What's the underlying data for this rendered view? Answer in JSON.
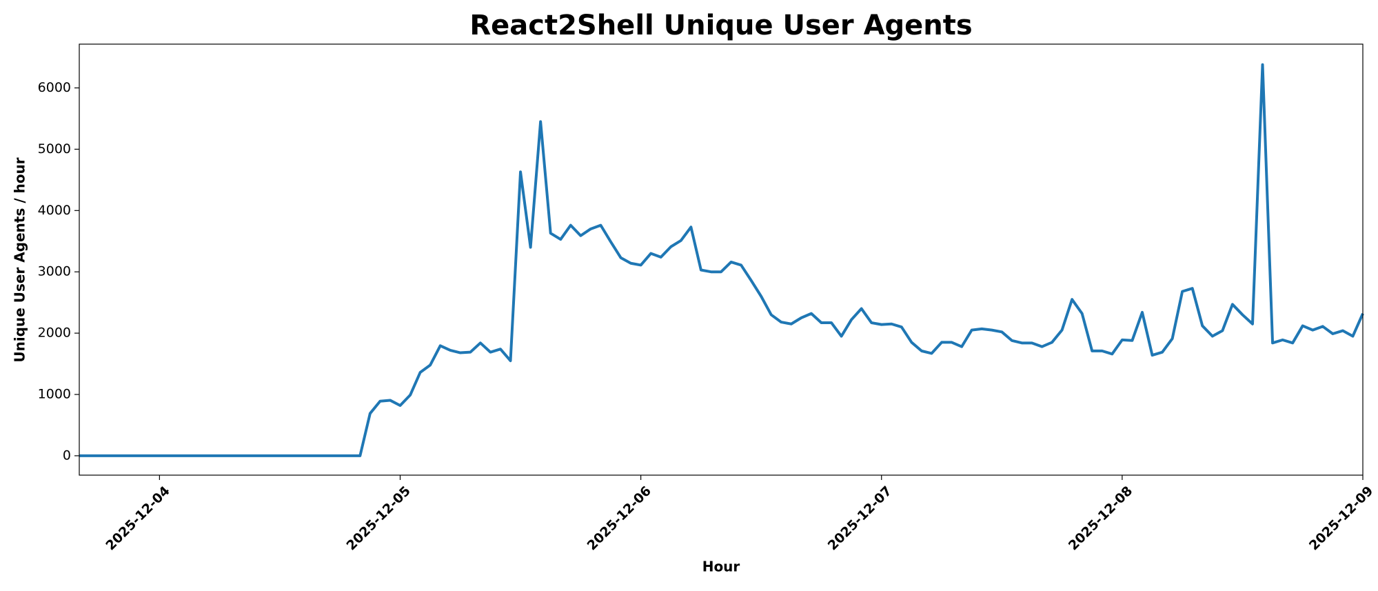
{
  "chart_data": {
    "type": "line",
    "title": "React2Shell Unique User Agents",
    "x_label": "Hour",
    "y_label": "Unique User Agents / hour",
    "x": [
      "2025-12-03T16:00",
      "2025-12-03T17:00",
      "2025-12-03T18:00",
      "2025-12-03T19:00",
      "2025-12-03T20:00",
      "2025-12-03T21:00",
      "2025-12-03T22:00",
      "2025-12-03T23:00",
      "2025-12-04T00:00",
      "2025-12-04T01:00",
      "2025-12-04T02:00",
      "2025-12-04T03:00",
      "2025-12-04T04:00",
      "2025-12-04T05:00",
      "2025-12-04T06:00",
      "2025-12-04T07:00",
      "2025-12-04T08:00",
      "2025-12-04T09:00",
      "2025-12-04T10:00",
      "2025-12-04T11:00",
      "2025-12-04T12:00",
      "2025-12-04T13:00",
      "2025-12-04T14:00",
      "2025-12-04T15:00",
      "2025-12-04T16:00",
      "2025-12-04T17:00",
      "2025-12-04T18:00",
      "2025-12-04T19:00",
      "2025-12-04T20:00",
      "2025-12-04T21:00",
      "2025-12-04T22:00",
      "2025-12-04T23:00",
      "2025-12-05T00:00",
      "2025-12-05T01:00",
      "2025-12-05T02:00",
      "2025-12-05T03:00",
      "2025-12-05T04:00",
      "2025-12-05T05:00",
      "2025-12-05T06:00",
      "2025-12-05T07:00",
      "2025-12-05T08:00",
      "2025-12-05T09:00",
      "2025-12-05T10:00",
      "2025-12-05T11:00",
      "2025-12-05T12:00",
      "2025-12-05T13:00",
      "2025-12-05T14:00",
      "2025-12-05T15:00",
      "2025-12-05T16:00",
      "2025-12-05T17:00",
      "2025-12-05T18:00",
      "2025-12-05T19:00",
      "2025-12-05T20:00",
      "2025-12-05T21:00",
      "2025-12-05T22:00",
      "2025-12-05T23:00",
      "2025-12-06T00:00",
      "2025-12-06T01:00",
      "2025-12-06T02:00",
      "2025-12-06T03:00",
      "2025-12-06T04:00",
      "2025-12-06T05:00",
      "2025-12-06T06:00",
      "2025-12-06T07:00",
      "2025-12-06T08:00",
      "2025-12-06T09:00",
      "2025-12-06T10:00",
      "2025-12-06T11:00",
      "2025-12-06T12:00",
      "2025-12-06T13:00",
      "2025-12-06T14:00",
      "2025-12-06T15:00",
      "2025-12-06T16:00",
      "2025-12-06T17:00",
      "2025-12-06T18:00",
      "2025-12-06T19:00",
      "2025-12-06T20:00",
      "2025-12-06T21:00",
      "2025-12-06T22:00",
      "2025-12-06T23:00",
      "2025-12-07T00:00",
      "2025-12-07T01:00",
      "2025-12-07T02:00",
      "2025-12-07T03:00",
      "2025-12-07T04:00",
      "2025-12-07T05:00",
      "2025-12-07T06:00",
      "2025-12-07T07:00",
      "2025-12-07T08:00",
      "2025-12-07T09:00",
      "2025-12-07T10:00",
      "2025-12-07T11:00",
      "2025-12-07T12:00",
      "2025-12-07T13:00",
      "2025-12-07T14:00",
      "2025-12-07T15:00",
      "2025-12-07T16:00",
      "2025-12-07T17:00",
      "2025-12-07T18:00",
      "2025-12-07T19:00",
      "2025-12-07T20:00",
      "2025-12-07T21:00",
      "2025-12-07T22:00",
      "2025-12-07T23:00",
      "2025-12-08T00:00",
      "2025-12-08T01:00",
      "2025-12-08T02:00",
      "2025-12-08T03:00",
      "2025-12-08T04:00",
      "2025-12-08T05:00",
      "2025-12-08T06:00",
      "2025-12-08T07:00",
      "2025-12-08T08:00",
      "2025-12-08T09:00",
      "2025-12-08T10:00",
      "2025-12-08T11:00",
      "2025-12-08T12:00",
      "2025-12-08T13:00",
      "2025-12-08T14:00",
      "2025-12-08T15:00",
      "2025-12-08T16:00",
      "2025-12-08T17:00",
      "2025-12-08T18:00",
      "2025-12-08T19:00",
      "2025-12-08T20:00",
      "2025-12-08T21:00",
      "2025-12-08T22:00",
      "2025-12-08T23:00",
      "2025-12-09T00:00"
    ],
    "series": [
      {
        "color": "#1f77b4",
        "values": [
          0,
          0,
          0,
          0,
          0,
          0,
          0,
          0,
          0,
          0,
          0,
          0,
          0,
          0,
          0,
          0,
          0,
          0,
          0,
          0,
          0,
          0,
          0,
          0,
          0,
          0,
          0,
          0,
          0,
          690,
          890,
          905,
          820,
          990,
          1360,
          1480,
          1795,
          1720,
          1680,
          1690,
          1840,
          1690,
          1740,
          1550,
          4630,
          3400,
          5450,
          3630,
          3530,
          3760,
          3590,
          3700,
          3760,
          3490,
          3230,
          3140,
          3110,
          3300,
          3240,
          3410,
          3510,
          3730,
          3030,
          3000,
          3000,
          3160,
          3110,
          2860,
          2600,
          2300,
          2180,
          2150,
          2250,
          2320,
          2170,
          2170,
          1950,
          2220,
          2400,
          2170,
          2140,
          2150,
          2100,
          1850,
          1710,
          1670,
          1850,
          1850,
          1780,
          2050,
          2070,
          2050,
          2020,
          1880,
          1840,
          1840,
          1780,
          1850,
          2050,
          2550,
          2320,
          1710,
          1710,
          1660,
          1890,
          1880,
          2340,
          1640,
          1690,
          1910,
          2680,
          2730,
          2120,
          1950,
          2040,
          2470,
          2300,
          2150,
          6380,
          1840,
          1890,
          1840,
          2120,
          2050,
          2110,
          1990,
          2040,
          1950,
          2320
        ]
      }
    ],
    "xlim": [
      "2025-12-03T16:00",
      "2025-12-09T00:00"
    ],
    "xticks": [
      "2025-12-04",
      "2025-12-05",
      "2025-12-06",
      "2025-12-07",
      "2025-12-08",
      "2025-12-09"
    ],
    "ylim": [
      -316,
      6714
    ],
    "yticks": [
      0,
      1000,
      2000,
      3000,
      4000,
      5000,
      6000
    ],
    "grid": false
  }
}
